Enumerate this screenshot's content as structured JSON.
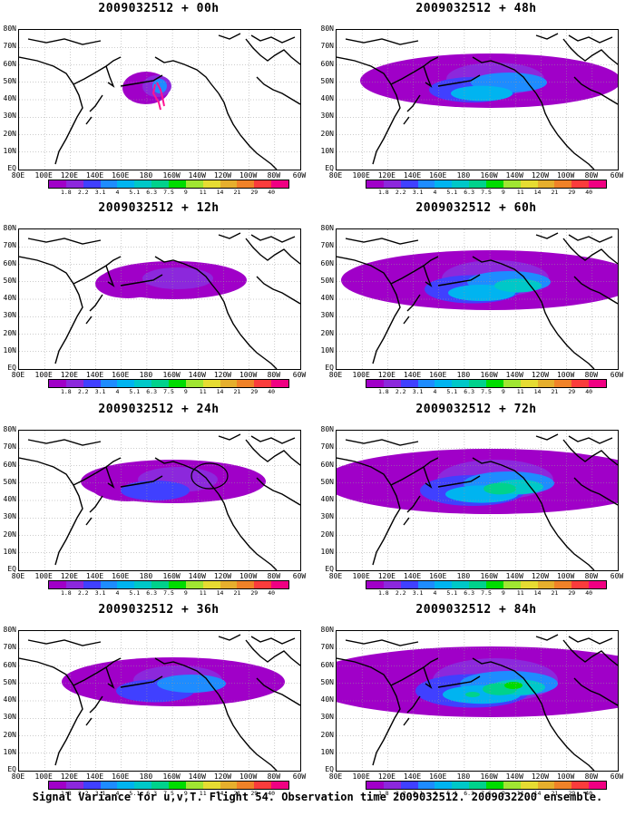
{
  "panels": [
    {
      "title": "2009032512 + 00h"
    },
    {
      "title": "2009032512 + 48h"
    },
    {
      "title": "2009032512 + 12h"
    },
    {
      "title": "2009032512 + 60h"
    },
    {
      "title": "2009032512 + 24h"
    },
    {
      "title": "2009032512 + 72h"
    },
    {
      "title": "2009032512 + 36h"
    },
    {
      "title": "2009032512 + 84h"
    }
  ],
  "lat_labels": [
    "80N",
    "70N",
    "60N",
    "50N",
    "40N",
    "30N",
    "20N",
    "10N",
    "EQ"
  ],
  "lon_labels": [
    "80E",
    "100E",
    "120E",
    "140E",
    "160E",
    "180",
    "160W",
    "140W",
    "120W",
    "100W",
    "80W",
    "60W"
  ],
  "colorbar": {
    "labels": [
      "1.8",
      "2.2",
      "3.1",
      "4",
      "5.1",
      "6.3",
      "7.5",
      "9",
      "11",
      "14",
      "21",
      "29",
      "40"
    ],
    "colors": [
      "#a000c8",
      "#8c28dc",
      "#4040ff",
      "#1e8cff",
      "#00b4f0",
      "#00c8c8",
      "#00d28c",
      "#00dc00",
      "#a0e632",
      "#e6dc32",
      "#e6af2d",
      "#f08228",
      "#fa3c3c",
      "#f00082"
    ]
  },
  "footer": "Signal Variance for u,v,T. Flight 54. Observation time 2009032512. 2009032200 ensemble."
}
